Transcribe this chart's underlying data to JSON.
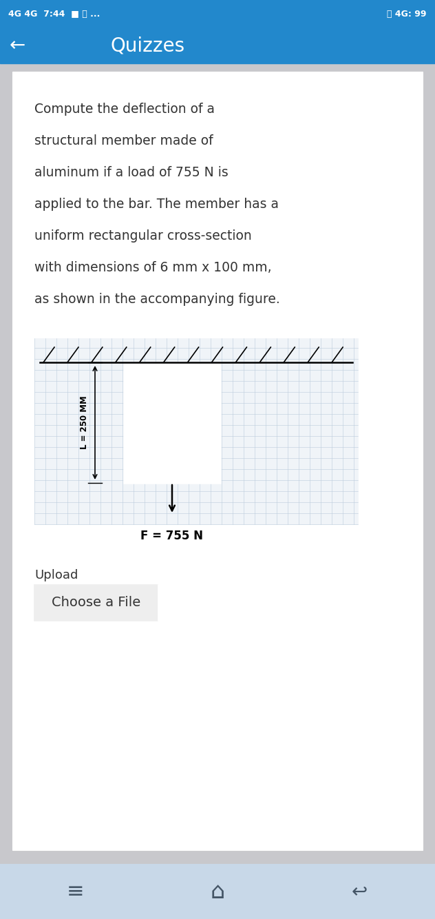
{
  "status_bar_bg": "#2288CC",
  "status_bar_text": "4G 4G  7:44 ■ ❆ ...",
  "status_bar_right": "⏰ 4G: 99",
  "nav_bar_bg": "#2288CC",
  "nav_bar_title": "Quizzes",
  "page_bg": "#C8C8CC",
  "card_bg": "#FFFFFF",
  "question_lines": [
    "Compute the deflection of a",
    "structural member made of",
    "aluminum if a load of 755 N is",
    "applied to the bar. The member has a",
    "uniform rectangular cross-section",
    "with dimensions of 6 mm x 100 mm,",
    "as shown in the accompanying figure."
  ],
  "force_label": "F = 755 N",
  "length_label": "L = 250 MM",
  "upload_label": "Upload",
  "button_label": "Choose a File",
  "bottom_bar_bg": "#C8D8E8",
  "text_color": "#333333",
  "grid_color": "#BBCCDD"
}
